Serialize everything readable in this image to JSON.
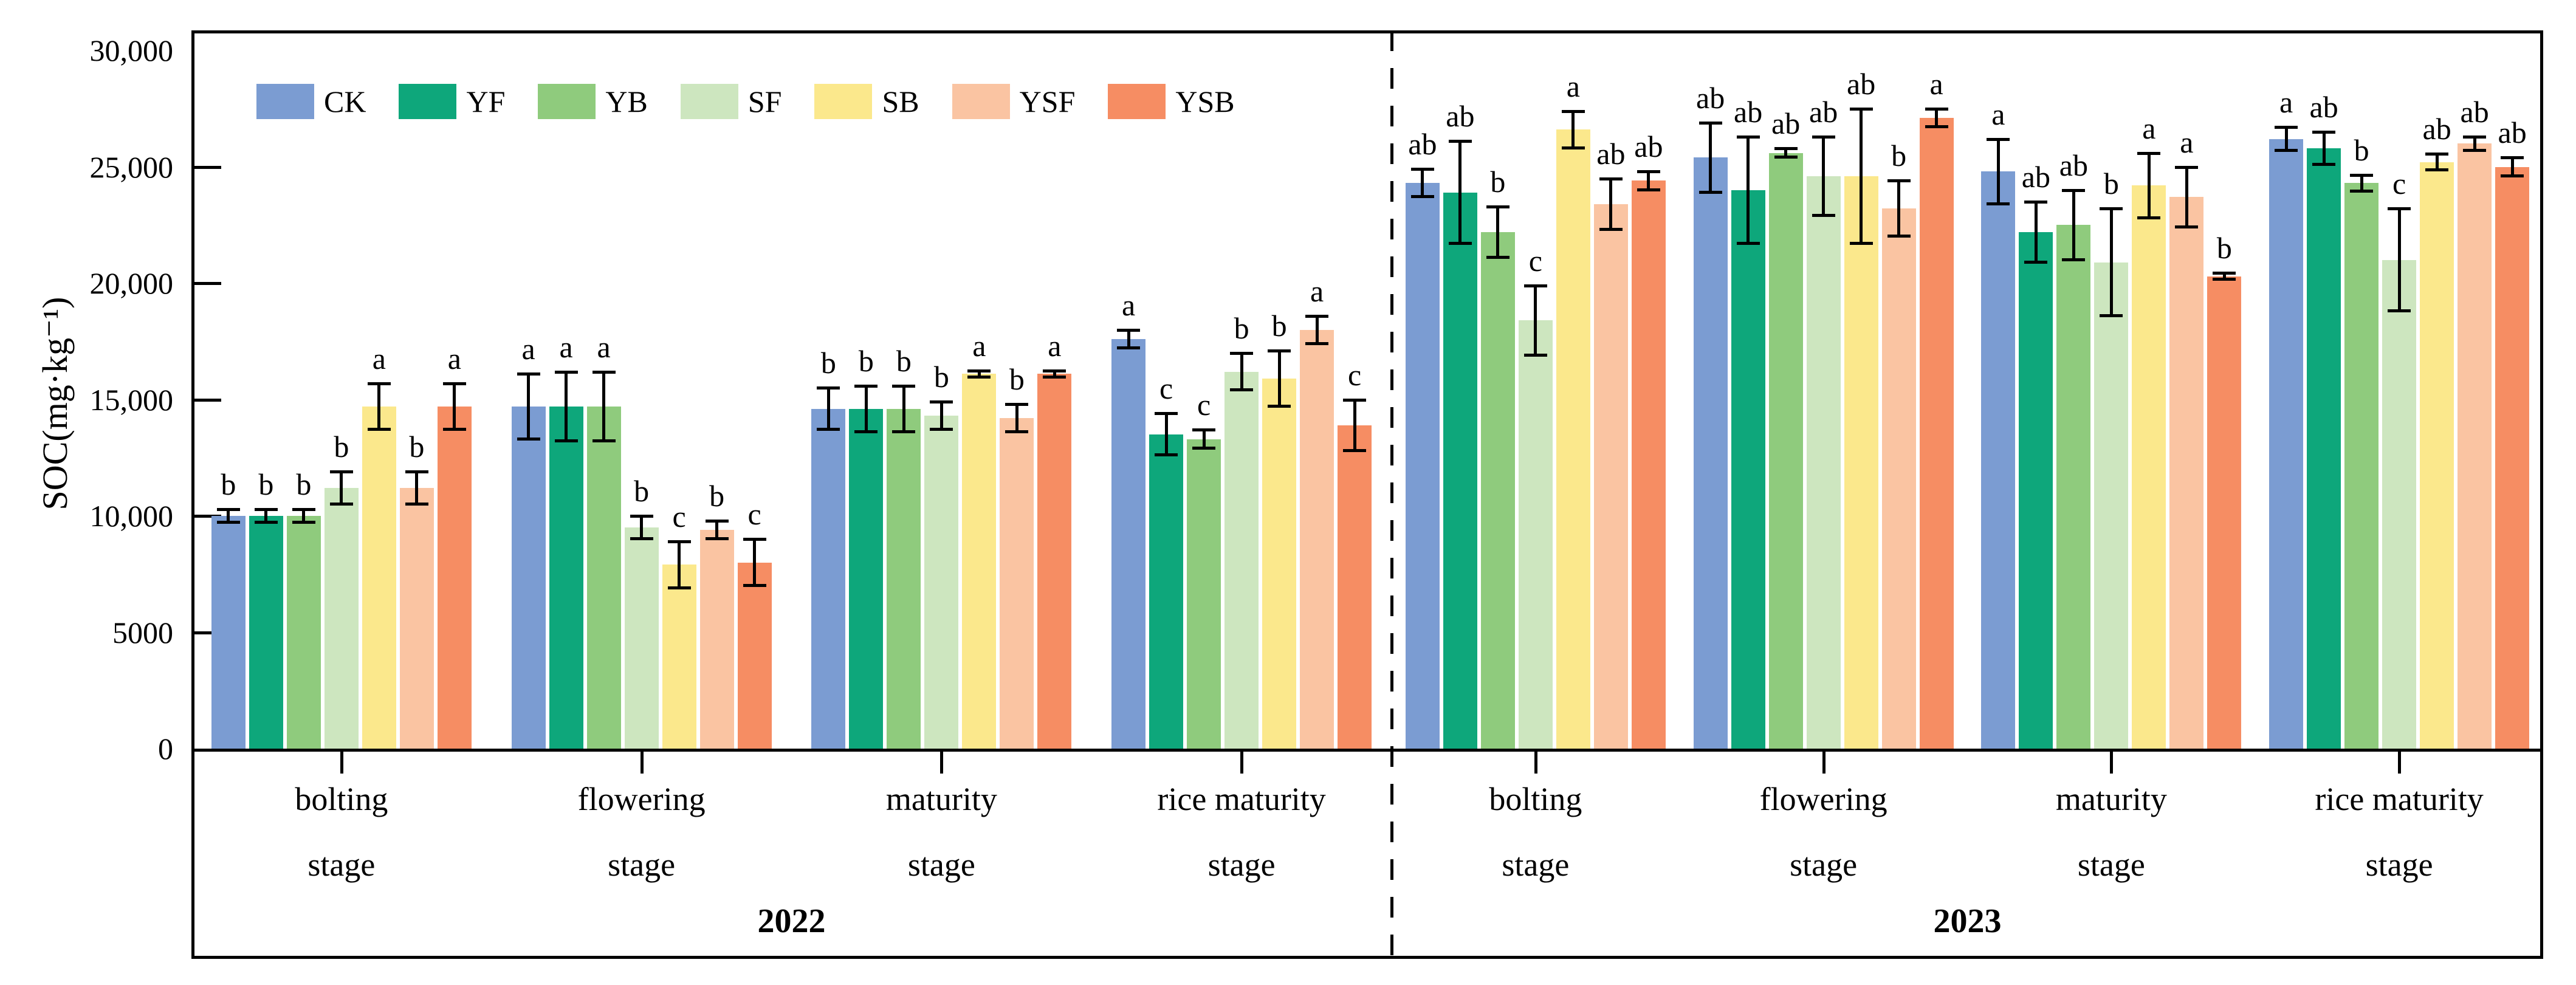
{
  "chart_data": {
    "type": "bar",
    "title": "",
    "xlabel": "",
    "ylabel": "SOC(mg·kg⁻¹)",
    "ylim": [
      0,
      30000
    ],
    "grid": false,
    "legend_position": "top-left-inside",
    "yticks": [
      {
        "value": 0,
        "label": "0"
      },
      {
        "value": 5000,
        "label": "5000"
      },
      {
        "value": 10000,
        "label": "10,000"
      },
      {
        "value": 15000,
        "label": "15,000"
      },
      {
        "value": 20000,
        "label": "20,000"
      },
      {
        "value": 25000,
        "label": "25,000"
      },
      {
        "value": 30000,
        "label": "30,000"
      }
    ],
    "series": [
      {
        "name": "CK",
        "color": "#7B9CD2"
      },
      {
        "name": "YF",
        "color": "#0EA77B"
      },
      {
        "name": "YB",
        "color": "#8FCB7D"
      },
      {
        "name": "SF",
        "color": "#CDE6BF"
      },
      {
        "name": "SB",
        "color": "#FBE88C"
      },
      {
        "name": "YSF",
        "color": "#FAC4A2"
      },
      {
        "name": "YSB",
        "color": "#F68D63"
      }
    ],
    "years": [
      {
        "label": "2022",
        "stages": [
          {
            "stage": "bolting stage",
            "bars": [
              {
                "treatment": "CK",
                "value": 10000,
                "error": 300,
                "letter": "b"
              },
              {
                "treatment": "YF",
                "value": 10000,
                "error": 300,
                "letter": "b"
              },
              {
                "treatment": "YB",
                "value": 10000,
                "error": 300,
                "letter": "b"
              },
              {
                "treatment": "SF",
                "value": 11200,
                "error": 700,
                "letter": "b"
              },
              {
                "treatment": "SB",
                "value": 14700,
                "error": 1000,
                "letter": "a"
              },
              {
                "treatment": "YSF",
                "value": 11200,
                "error": 700,
                "letter": "b"
              },
              {
                "treatment": "YSB",
                "value": 14700,
                "error": 1000,
                "letter": "a"
              }
            ]
          },
          {
            "stage": "flowering stage",
            "bars": [
              {
                "treatment": "CK",
                "value": 14700,
                "error": 1400,
                "letter": "a"
              },
              {
                "treatment": "YF",
                "value": 14700,
                "error": 1500,
                "letter": "a"
              },
              {
                "treatment": "YB",
                "value": 14700,
                "error": 1500,
                "letter": "a"
              },
              {
                "treatment": "SF",
                "value": 9500,
                "error": 500,
                "letter": "b"
              },
              {
                "treatment": "SB",
                "value": 7900,
                "error": 1000,
                "letter": "c"
              },
              {
                "treatment": "YSF",
                "value": 9400,
                "error": 400,
                "letter": "b"
              },
              {
                "treatment": "YSB",
                "value": 8000,
                "error": 1000,
                "letter": "c"
              }
            ]
          },
          {
            "stage": "maturity stage",
            "bars": [
              {
                "treatment": "CK",
                "value": 14600,
                "error": 900,
                "letter": "b"
              },
              {
                "treatment": "YF",
                "value": 14600,
                "error": 1000,
                "letter": "b"
              },
              {
                "treatment": "YB",
                "value": 14600,
                "error": 1000,
                "letter": "b"
              },
              {
                "treatment": "SF",
                "value": 14300,
                "error": 600,
                "letter": "b"
              },
              {
                "treatment": "SB",
                "value": 16100,
                "error": 150,
                "letter": "a"
              },
              {
                "treatment": "YSF",
                "value": 14200,
                "error": 600,
                "letter": "b"
              },
              {
                "treatment": "YSB",
                "value": 16100,
                "error": 150,
                "letter": "a"
              }
            ]
          },
          {
            "stage": "rice maturity stage",
            "bars": [
              {
                "treatment": "CK",
                "value": 17600,
                "error": 400,
                "letter": "a"
              },
              {
                "treatment": "YF",
                "value": 13500,
                "error": 900,
                "letter": "c"
              },
              {
                "treatment": "YB",
                "value": 13300,
                "error": 400,
                "letter": "c"
              },
              {
                "treatment": "SF",
                "value": 16200,
                "error": 800,
                "letter": "b"
              },
              {
                "treatment": "SB",
                "value": 15900,
                "error": 1200,
                "letter": "b"
              },
              {
                "treatment": "YSF",
                "value": 18000,
                "error": 600,
                "letter": "a"
              },
              {
                "treatment": "YSB",
                "value": 13900,
                "error": 1100,
                "letter": "c"
              }
            ]
          }
        ]
      },
      {
        "label": "2023",
        "stages": [
          {
            "stage": "bolting stage",
            "bars": [
              {
                "treatment": "CK",
                "value": 24300,
                "error": 600,
                "letter": "ab"
              },
              {
                "treatment": "YF",
                "value": 23900,
                "error": 2200,
                "letter": "ab"
              },
              {
                "treatment": "YB",
                "value": 22200,
                "error": 1100,
                "letter": "b"
              },
              {
                "treatment": "SF",
                "value": 18400,
                "error": 1500,
                "letter": "c"
              },
              {
                "treatment": "SB",
                "value": 26600,
                "error": 800,
                "letter": "a"
              },
              {
                "treatment": "YSF",
                "value": 23400,
                "error": 1100,
                "letter": "ab"
              },
              {
                "treatment": "YSB",
                "value": 24400,
                "error": 400,
                "letter": "ab"
              }
            ]
          },
          {
            "stage": "flowering stage",
            "bars": [
              {
                "treatment": "CK",
                "value": 25400,
                "error": 1500,
                "letter": "ab"
              },
              {
                "treatment": "YF",
                "value": 24000,
                "error": 2300,
                "letter": "ab"
              },
              {
                "treatment": "YB",
                "value": 25600,
                "error": 200,
                "letter": "ab"
              },
              {
                "treatment": "SF",
                "value": 24600,
                "error": 1700,
                "letter": "ab"
              },
              {
                "treatment": "SB",
                "value": 24600,
                "error": 2900,
                "letter": "ab"
              },
              {
                "treatment": "YSF",
                "value": 23200,
                "error": 1200,
                "letter": "b"
              },
              {
                "treatment": "YSB",
                "value": 27100,
                "error": 400,
                "letter": "a"
              }
            ]
          },
          {
            "stage": "maturity stage",
            "bars": [
              {
                "treatment": "CK",
                "value": 24800,
                "error": 1400,
                "letter": "a"
              },
              {
                "treatment": "YF",
                "value": 22200,
                "error": 1300,
                "letter": "ab"
              },
              {
                "treatment": "YB",
                "value": 22500,
                "error": 1500,
                "letter": "ab"
              },
              {
                "treatment": "SF",
                "value": 20900,
                "error": 2300,
                "letter": "b"
              },
              {
                "treatment": "SB",
                "value": 24200,
                "error": 1400,
                "letter": "a"
              },
              {
                "treatment": "YSF",
                "value": 23700,
                "error": 1300,
                "letter": "a"
              },
              {
                "treatment": "YSB",
                "value": 20300,
                "error": 150,
                "letter": "b"
              }
            ]
          },
          {
            "stage": "rice maturity stage",
            "bars": [
              {
                "treatment": "CK",
                "value": 26200,
                "error": 500,
                "letter": "a"
              },
              {
                "treatment": "YF",
                "value": 25800,
                "error": 700,
                "letter": "ab"
              },
              {
                "treatment": "YB",
                "value": 24300,
                "error": 350,
                "letter": "b"
              },
              {
                "treatment": "SF",
                "value": 21000,
                "error": 2200,
                "letter": "c"
              },
              {
                "treatment": "SB",
                "value": 25200,
                "error": 350,
                "letter": "ab"
              },
              {
                "treatment": "YSF",
                "value": 26000,
                "error": 300,
                "letter": "ab"
              },
              {
                "treatment": "YSB",
                "value": 25000,
                "error": 400,
                "letter": "ab"
              }
            ]
          }
        ]
      }
    ]
  }
}
